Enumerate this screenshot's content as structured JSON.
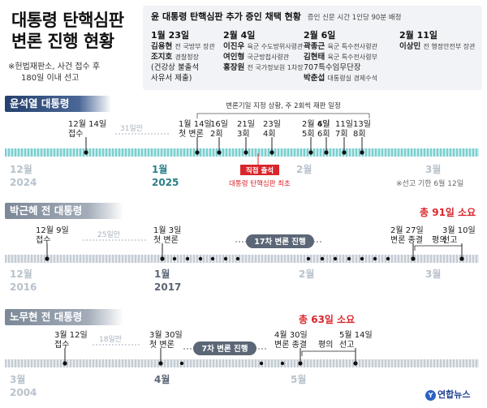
{
  "title": [
    "대통령 탄핵심판",
    "변론 진행 현황"
  ],
  "note": [
    "※헌법재판소, 사건 접수 후",
    "180일 이내 선고"
  ],
  "witness": {
    "title": "윤 대통령 탄핵심판 추가 증인 채택 현황",
    "subtitle": "증인 신문 시간 1인당 90분 배정",
    "groups": [
      {
        "date": "1월 23일",
        "people": [
          {
            "name": "김용현",
            "role": "전 국방부 장관"
          },
          {
            "name": "조지호",
            "role": "경찰청장"
          },
          {
            "name": "",
            "role": "(건강상 불출석"
          },
          {
            "name": "",
            "role": "사유서 제출)"
          }
        ]
      },
      {
        "date": "2월 4일",
        "people": [
          {
            "name": "이진우",
            "role": "육군 수도방위사령관"
          },
          {
            "name": "여인형",
            "role": "국군방첩사령관"
          },
          {
            "name": "홍장원",
            "role": "전 국가정보원 1차장"
          }
        ]
      },
      {
        "date": "2월 6일",
        "people": [
          {
            "name": "곽종근",
            "role": "육군 특수전사령관"
          },
          {
            "name": "김현태",
            "role": "육군 특수전사령부"
          },
          {
            "name": "",
            "role": "707특수임무단장"
          },
          {
            "name": "박춘섭",
            "role": "대통령실 경제수석"
          }
        ]
      },
      {
        "date": "2월 11일",
        "people": [
          {
            "name": "이상민",
            "role": "전 행정안전부 장관"
          }
        ]
      }
    ]
  },
  "sections": [
    {
      "head": "윤석열 대통령",
      "bar_label": "변론기일 지정 상황, 주 2회씩 재판 일정",
      "events": [
        {
          "label": [
            "12월 14일",
            "접수"
          ]
        },
        {
          "label": [
            "31일만"
          ]
        },
        {
          "label": [
            "1월 14일",
            "첫 변론"
          ]
        },
        {
          "label": [
            "16일",
            "2회"
          ]
        },
        {
          "label": [
            "21일",
            "3회"
          ]
        },
        {
          "label": [
            "23일",
            "4회"
          ]
        },
        {
          "label": [
            "2월 4일",
            "5회"
          ]
        },
        {
          "label": [
            "6일",
            "6회"
          ]
        },
        {
          "label": [
            "11일",
            "7회"
          ]
        },
        {
          "label": [
            "13일",
            "8회"
          ]
        }
      ],
      "appear": "직접 출석",
      "appear_note": "대통령 탄핵심판 최초",
      "months": [
        {
          "m": "12월",
          "y": "2024"
        },
        {
          "m": "1월",
          "y": "2025"
        },
        {
          "m": "2월",
          "y": ""
        },
        {
          "m": "3월",
          "y": ""
        }
      ],
      "deadline": "※선고 기한 6월 12일"
    },
    {
      "head": "박근혜 전 대통령",
      "total": "총 91일 소요",
      "events": [
        {
          "label": [
            "12월 9일",
            "접수"
          ]
        },
        {
          "label": [
            "25일만"
          ]
        },
        {
          "label": [
            "1월 3일",
            "첫 변론"
          ]
        },
        {
          "label": [
            "17차 변론 진행"
          ]
        },
        {
          "label": [
            "2월 27일",
            "변론 종결"
          ]
        },
        {
          "label": [
            "평의"
          ]
        },
        {
          "label": [
            "3월 10일",
            "선고"
          ]
        }
      ],
      "months": [
        {
          "m": "12월",
          "y": "2016"
        },
        {
          "m": "1월",
          "y": "2017"
        },
        {
          "m": "2월",
          "y": ""
        },
        {
          "m": "3월",
          "y": ""
        }
      ]
    },
    {
      "head": "노무현 전 대통령",
      "total": "총 63일 소요",
      "events": [
        {
          "label": [
            "3월 12일",
            "접수"
          ]
        },
        {
          "label": [
            "18일만"
          ]
        },
        {
          "label": [
            "3월 30일",
            "첫 변론"
          ]
        },
        {
          "label": [
            "7차 변론 진행"
          ]
        },
        {
          "label": [
            "4월 30일",
            "변론 종결"
          ]
        },
        {
          "label": [
            "평의"
          ]
        },
        {
          "label": [
            "5월 14일",
            "선고"
          ]
        }
      ],
      "months": [
        {
          "m": "3월",
          "y": "2004"
        },
        {
          "m": "4월",
          "y": ""
        },
        {
          "m": "5월",
          "y": ""
        }
      ]
    }
  ],
  "logo": "연합뉴스",
  "colors": {
    "accent": "#d8262c",
    "teal": "#3bb7b8",
    "navy": "#2a3f6e",
    "muted": "#a8b3c0"
  }
}
